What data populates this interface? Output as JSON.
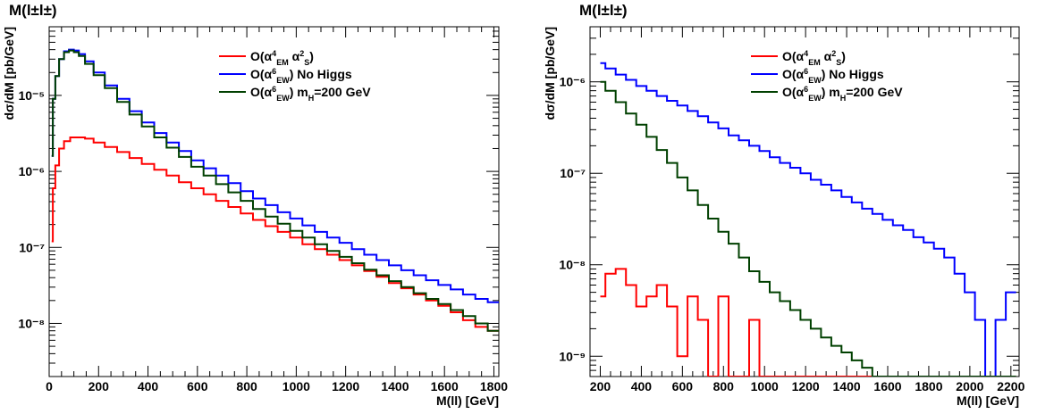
{
  "chart_data": [
    {
      "type": "line",
      "title": "M(l±l±)",
      "xlabel": "M(ll) [GeV]",
      "ylabel": "dσ/dM [pb/GeV]",
      "xlim": [
        0,
        1820
      ],
      "ylim": [
        2e-09,
        8e-05
      ],
      "yscale": "log",
      "grid": false,
      "legend_position": "top-right",
      "xticks": [
        0,
        200,
        400,
        600,
        800,
        1000,
        1200,
        1400,
        1600,
        1800
      ],
      "xtick_labels": [
        "0",
        "200",
        "400",
        "600",
        "800",
        "1000",
        "1200",
        "1400",
        "1600",
        "1800"
      ],
      "yticks": [
        1e-08,
        1e-07,
        1e-06,
        1e-05
      ],
      "ytick_labels": [
        "10⁻⁸",
        "10⁻⁷",
        "10⁻⁶",
        "10⁻⁵"
      ],
      "series": [
        {
          "name": "O(α⁴EM α²S)",
          "color": "#ff0000",
          "x": [
            10,
            20,
            30,
            50,
            70,
            100,
            130,
            160,
            200,
            250,
            300,
            350,
            400,
            450,
            500,
            550,
            600,
            650,
            700,
            750,
            800,
            850,
            900,
            950,
            1000,
            1050,
            1100,
            1150,
            1200,
            1250,
            1300,
            1350,
            1400,
            1450,
            1500,
            1550,
            1600,
            1650,
            1700,
            1750,
            1800
          ],
          "y": [
            1.2e-07,
            6e-07,
            1.2e-06,
            2e-06,
            2.5e-06,
            2.8e-06,
            2.8e-06,
            2.7e-06,
            2.4e-06,
            2.1e-06,
            1.8e-06,
            1.5e-06,
            1.25e-06,
            1.05e-06,
            8.8e-07,
            7.2e-07,
            6e-07,
            5e-07,
            4.1e-07,
            3.4e-07,
            2.8e-07,
            2.3e-07,
            1.9e-07,
            1.6e-07,
            1.35e-07,
            1.1e-07,
            9.5e-08,
            8e-08,
            6.8e-08,
            5.8e-08,
            4.9e-08,
            4.1e-08,
            3.4e-08,
            2.9e-08,
            2.4e-08,
            2e-08,
            1.7e-08,
            1.4e-08,
            1.1e-08,
            9e-09,
            8e-09
          ]
        },
        {
          "name": "O(α⁶EW) No Higgs",
          "color": "#0000ff",
          "x": [
            10,
            20,
            30,
            50,
            70,
            90,
            110,
            130,
            160,
            200,
            250,
            300,
            350,
            400,
            450,
            500,
            550,
            600,
            650,
            700,
            750,
            800,
            850,
            900,
            950,
            1000,
            1050,
            1100,
            1150,
            1200,
            1250,
            1300,
            1350,
            1400,
            1450,
            1500,
            1550,
            1600,
            1650,
            1700,
            1750,
            1800
          ],
          "y": [
            1.6e-06,
            9e-06,
            1.8e-05,
            3e-05,
            3.8e-05,
            4e-05,
            3.9e-05,
            3.5e-05,
            2.8e-05,
            2e-05,
            1.35e-05,
            9e-06,
            6.2e-06,
            4.4e-06,
            3.2e-06,
            2.4e-06,
            1.85e-06,
            1.4e-06,
            1.1e-06,
            8.8e-07,
            7e-07,
            5.5e-07,
            4.4e-07,
            3.6e-07,
            2.9e-07,
            2.4e-07,
            1.95e-07,
            1.6e-07,
            1.35e-07,
            1.15e-07,
            9.5e-08,
            8e-08,
            6.8e-08,
            5.8e-08,
            5e-08,
            4.3e-08,
            3.7e-08,
            3.2e-08,
            2.8e-08,
            2.4e-08,
            2.1e-08,
            1.9e-08
          ]
        },
        {
          "name": "O(α⁶EW) mH=200 GeV",
          "color": "#004000",
          "x": [
            10,
            20,
            30,
            50,
            70,
            90,
            110,
            130,
            160,
            200,
            250,
            300,
            350,
            400,
            450,
            500,
            550,
            600,
            650,
            700,
            750,
            800,
            850,
            900,
            950,
            1000,
            1050,
            1100,
            1150,
            1200,
            1250,
            1300,
            1350,
            1400,
            1450,
            1500,
            1550,
            1600,
            1650,
            1700,
            1750,
            1800
          ],
          "y": [
            1.6e-06,
            9e-06,
            1.8e-05,
            3e-05,
            3.7e-05,
            3.9e-05,
            3.7e-05,
            3.3e-05,
            2.6e-05,
            1.85e-05,
            1.25e-05,
            8.2e-06,
            5.6e-06,
            3.9e-06,
            2.8e-06,
            2.05e-06,
            1.55e-06,
            1.15e-06,
            8.8e-07,
            6.8e-07,
            5.3e-07,
            4.1e-07,
            3.2e-07,
            2.55e-07,
            2.05e-07,
            1.65e-07,
            1.35e-07,
            1.1e-07,
            9e-08,
            7.5e-08,
            6.2e-08,
            5.1e-08,
            4.3e-08,
            3.6e-08,
            3e-08,
            2.5e-08,
            2.1e-08,
            1.8e-08,
            1.5e-08,
            1.25e-08,
            1e-08,
            8e-09
          ]
        }
      ]
    },
    {
      "type": "line",
      "title": "M(l±l±)",
      "xlabel": "M(ll) [GeV]",
      "ylabel": "dσ/dM [pb/GeV]",
      "xlim": [
        150,
        2240
      ],
      "ylim": [
        6e-10,
        4e-06
      ],
      "yscale": "log",
      "grid": false,
      "legend_position": "top-right",
      "xticks": [
        200,
        400,
        600,
        800,
        1000,
        1200,
        1400,
        1600,
        1800,
        2000,
        2200
      ],
      "xtick_labels": [
        "200",
        "400",
        "600",
        "800",
        "1000",
        "1200",
        "1400",
        "1600",
        "1800",
        "2000",
        "2200"
      ],
      "yticks": [
        1e-09,
        1e-08,
        1e-07,
        1e-06
      ],
      "ytick_labels": [
        "10⁻⁹",
        "10⁻⁸",
        "10⁻⁷",
        "10⁻⁶"
      ],
      "series": [
        {
          "name": "O(α⁴EM α²S)",
          "color": "#ff0000",
          "x": [
            200,
            250,
            300,
            350,
            400,
            450,
            500,
            550,
            600,
            650,
            700,
            750,
            800,
            850,
            900,
            950,
            1000,
            1050,
            1100,
            1150,
            1200,
            1250,
            1300,
            1350,
            1400,
            1450,
            1500,
            1550,
            1600,
            1650,
            1700,
            1750,
            1800,
            1850,
            1900,
            1950,
            2000,
            2050,
            2100,
            2150,
            2200
          ],
          "y": [
            4.5e-09,
            8e-09,
            9e-09,
            6e-09,
            3.5e-09,
            4.5e-09,
            6e-09,
            3.5e-09,
            1e-09,
            4.5e-09,
            2.5e-09,
            6e-10,
            4.5e-09,
            6e-10,
            6e-10,
            2.5e-09,
            6e-10,
            6e-10,
            6e-10,
            6e-10,
            6e-10,
            6e-10,
            6e-10,
            6e-10,
            6e-10,
            6e-10,
            6e-10,
            6e-10,
            6e-10,
            6e-10,
            6e-10,
            6e-10,
            6e-10,
            6e-10,
            6e-10,
            6e-10,
            6e-10,
            6e-10,
            6e-10,
            6e-10,
            6e-10
          ]
        },
        {
          "name": "O(α⁶EW) No Higgs",
          "color": "#0000ff",
          "x": [
            200,
            250,
            300,
            350,
            400,
            450,
            500,
            550,
            600,
            650,
            700,
            750,
            800,
            850,
            900,
            950,
            1000,
            1050,
            1100,
            1150,
            1200,
            1250,
            1300,
            1350,
            1400,
            1450,
            1500,
            1550,
            1600,
            1650,
            1700,
            1750,
            1800,
            1850,
            1900,
            1950,
            2000,
            2050,
            2100,
            2150,
            2200
          ],
          "y": [
            1.6e-06,
            1.4e-06,
            1.2e-06,
            1.05e-06,
            9e-07,
            8e-07,
            7e-07,
            6.2e-07,
            5.5e-07,
            4.8e-07,
            4.2e-07,
            3.6e-07,
            3.1e-07,
            2.6e-07,
            2.3e-07,
            2e-07,
            1.75e-07,
            1.5e-07,
            1.3e-07,
            1.15e-07,
            1e-07,
            8.5e-08,
            7.5e-08,
            6.5e-08,
            5.5e-08,
            4.8e-08,
            4.1e-08,
            3.6e-08,
            3.1e-08,
            2.7e-08,
            2.4e-08,
            2e-08,
            1.75e-08,
            1.5e-08,
            1.2e-08,
            8e-09,
            5e-09,
            2.5e-09,
            6e-10,
            2.5e-09,
            5e-09
          ]
        },
        {
          "name": "O(α⁶EW) mH=200 GeV",
          "color": "#004000",
          "x": [
            200,
            250,
            300,
            350,
            400,
            450,
            500,
            550,
            600,
            650,
            700,
            750,
            800,
            850,
            900,
            950,
            1000,
            1050,
            1100,
            1150,
            1200,
            1250,
            1300,
            1350,
            1400,
            1450,
            1500,
            1550,
            1600,
            1650,
            1700,
            1750,
            1800,
            1850,
            1900,
            1950,
            2000,
            2050,
            2100,
            2150,
            2200
          ],
          "y": [
            1e-06,
            8e-07,
            6e-07,
            4.5e-07,
            3.4e-07,
            2.5e-07,
            1.8e-07,
            1.3e-07,
            9e-08,
            6.5e-08,
            4.5e-08,
            3.2e-08,
            2.3e-08,
            1.7e-08,
            1.2e-08,
            8.5e-09,
            6.5e-09,
            5e-09,
            4e-09,
            3.2e-09,
            2.5e-09,
            2e-09,
            1.6e-09,
            1.3e-09,
            1.1e-09,
            9e-10,
            7.5e-10,
            6e-10,
            6e-10,
            6e-10,
            6e-10,
            6e-10,
            6e-10,
            6e-10,
            6e-10,
            6e-10,
            6e-10,
            6e-10,
            6e-10,
            6e-10,
            6e-10
          ]
        }
      ]
    }
  ]
}
